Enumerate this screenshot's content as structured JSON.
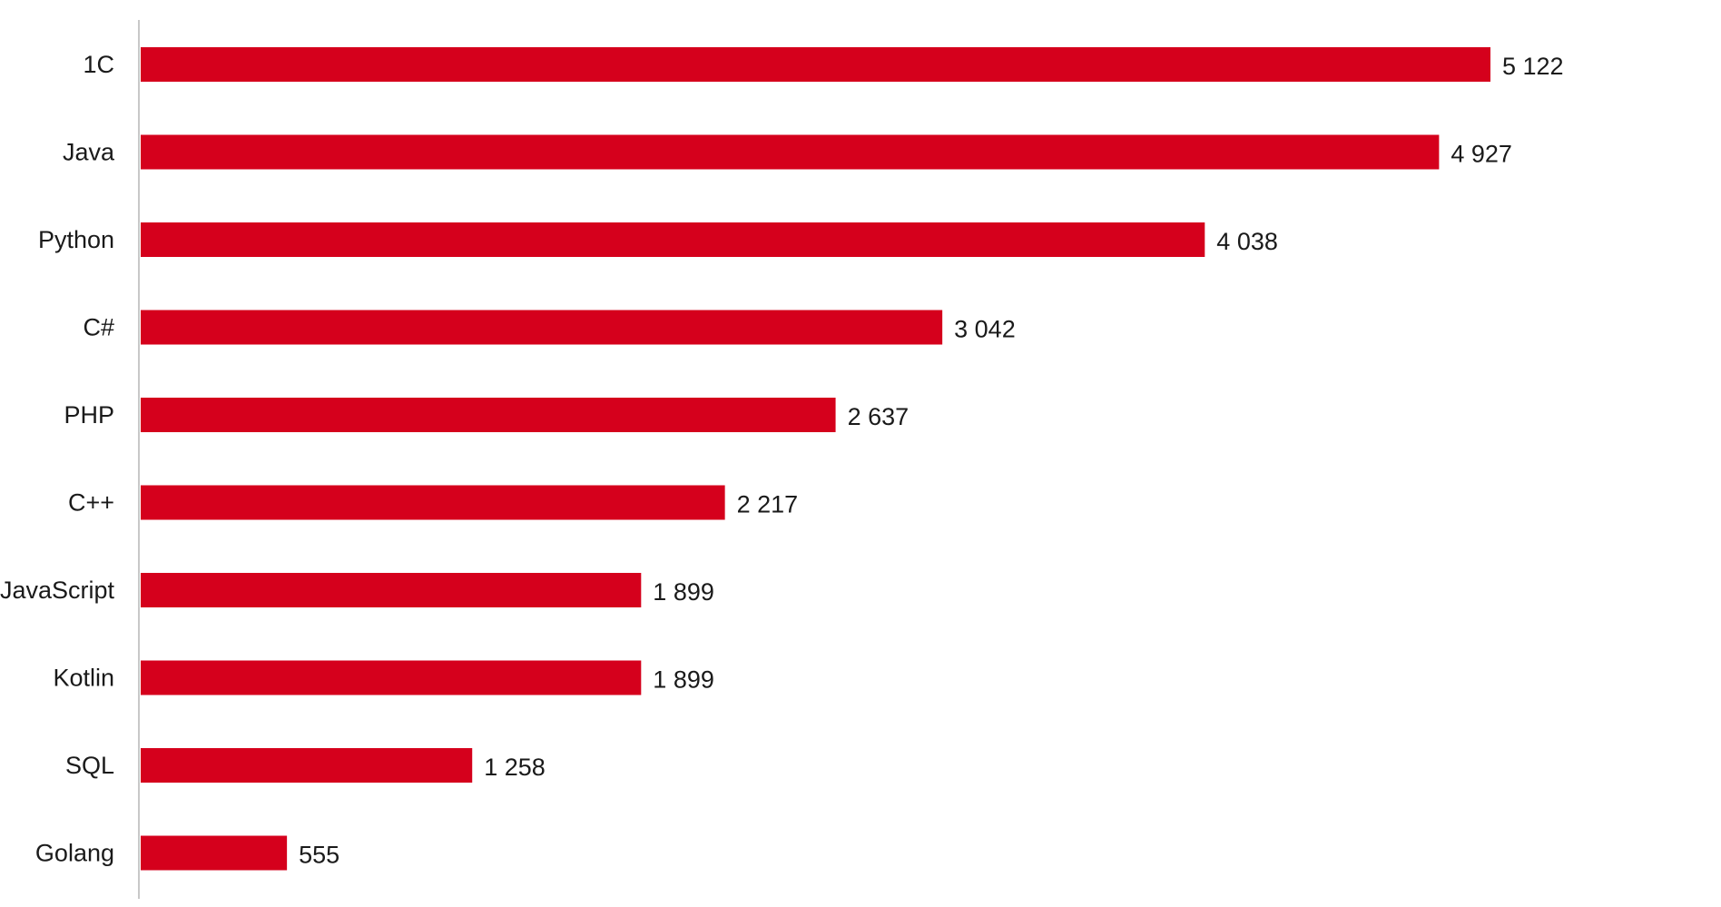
{
  "chart_data": {
    "type": "bar",
    "orientation": "horizontal",
    "title": "",
    "xlabel": "",
    "ylabel": "",
    "categories": [
      "1C",
      "Java",
      "Python",
      "C#",
      "PHP",
      "C++",
      "JavaScript",
      "Kotlin",
      "SQL",
      "Golang"
    ],
    "values": [
      5122,
      4927,
      4038,
      3042,
      2637,
      2217,
      1899,
      1899,
      1258,
      555
    ],
    "value_labels": [
      "5 122",
      "4 927",
      "4 038",
      "3 042",
      "2 637",
      "2 217",
      "1 899",
      "1 899",
      "1 258",
      "555"
    ],
    "xlim": [
      0,
      5122
    ],
    "grid": false,
    "legend": "none",
    "colors": {
      "bar": "#d5001c",
      "axis": "#c8c8c8",
      "text": "#1a1a1a"
    }
  }
}
